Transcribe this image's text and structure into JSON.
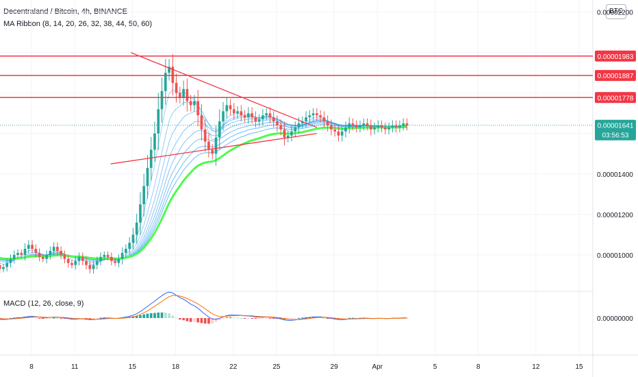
{
  "header": {
    "symbol_title": "Decentraland / Bitcoin, 4h, BINANCE",
    "ribbon_title": "MA Ribbon (8, 14, 20, 26, 32, 38, 44, 50, 60)",
    "macd_title": "MACD (12, 26, close, 9)",
    "currency": "BTC"
  },
  "colors": {
    "up": "#26a69a",
    "down": "#ef5350",
    "level": "#f23645",
    "ribbon_fast": "#2196f3",
    "ribbon_slow": "#4cfc4c",
    "macd_line": "#2962ff",
    "signal_line": "#ff6d00",
    "price_tag": "#26a69a",
    "trendline": "#f23645"
  },
  "chart_data": {
    "type": "candlestick",
    "price_axis": {
      "range": [
        8.2e-06,
        2.26e-05
      ],
      "tick_values": [
        1e-05,
        1.2e-05,
        1.4e-05,
        2.2e-05
      ],
      "tick_labels": [
        "0.00001000",
        "0.00001200",
        "0.00001400",
        "0.00002200"
      ]
    },
    "time_axis": {
      "ticks": [
        {
          "label": "8",
          "day": 8
        },
        {
          "label": "11",
          "day": 11
        },
        {
          "label": "15",
          "day": 15
        },
        {
          "label": "18",
          "day": 18
        },
        {
          "label": "22",
          "day": 22
        },
        {
          "label": "25",
          "day": 25
        },
        {
          "label": "29",
          "day": 29
        },
        {
          "label": "Apr",
          "day": 32
        },
        {
          "label": "5",
          "day": 36
        },
        {
          "label": "8",
          "day": 39
        },
        {
          "label": "12",
          "day": 43
        },
        {
          "label": "15",
          "day": 46
        }
      ]
    },
    "horizontal_levels": [
      {
        "value": 1.983e-05,
        "label": "0.00001983"
      },
      {
        "value": 1.887e-05,
        "label": "0.00001887"
      },
      {
        "value": 1.778e-05,
        "label": "0.00001778"
      }
    ],
    "last_price": {
      "value": 1.641e-05,
      "label": "0.00001641",
      "countdown": "03:56:53"
    },
    "trendlines": [
      {
        "from": {
          "day": 14.9,
          "value": 2e-05
        },
        "to": {
          "day": 27.8,
          "value": 1.63e-05
        }
      },
      {
        "from": {
          "day": 13.5,
          "value": 1.45e-05
        },
        "to": {
          "day": 27.8,
          "value": 1.6e-05
        }
      }
    ],
    "close_series": {
      "day_start": 5.3,
      "day_step": 0.25,
      "values": [
        9.9e-06,
        9.5e-06,
        9.3e-06,
        9.4e-06,
        9.6e-06,
        9.8e-06,
        1e-05,
        1.01e-05,
        1e-05,
        1.03e-05,
        1.05e-05,
        1.03e-05,
        1.01e-05,
        9.9e-06,
        9.8e-06,
        1e-05,
        1.02e-05,
        1.04e-05,
        1.02e-05,
        1e-05,
        9.8e-06,
        9.6e-06,
        9.5e-06,
        9.7e-06,
        9.9e-06,
        9.7e-06,
        9.5e-06,
        9.3e-06,
        9.5e-06,
        9.7e-06,
        9.9e-06,
        1e-05,
        9.9e-06,
        9.7e-06,
        9.6e-06,
        9.8e-06,
        1.01e-05,
        1.03e-05,
        1.06e-05,
        1.1e-05,
        1.16e-05,
        1.25e-05,
        1.34e-05,
        1.43e-05,
        1.52e-05,
        1.6e-05,
        1.72e-05,
        1.81e-05,
        1.9e-05,
        1.93e-05,
        1.85e-05,
        1.8e-05,
        1.78e-05,
        1.82e-05,
        1.76e-05,
        1.74e-05,
        1.76e-05,
        1.69e-05,
        1.62e-05,
        1.56e-05,
        1.52e-05,
        1.5e-05,
        1.58e-05,
        1.66e-05,
        1.71e-05,
        1.74e-05,
        1.72e-05,
        1.7e-05,
        1.71e-05,
        1.69e-05,
        1.68e-05,
        1.7e-05,
        1.68e-05,
        1.66e-05,
        1.67e-05,
        1.69e-05,
        1.7e-05,
        1.68e-05,
        1.66e-05,
        1.64e-05,
        1.62e-05,
        1.58e-05,
        1.59e-05,
        1.61e-05,
        1.63e-05,
        1.65e-05,
        1.66e-05,
        1.68e-05,
        1.69e-05,
        1.7e-05,
        1.69e-05,
        1.68e-05,
        1.66e-05,
        1.64e-05,
        1.62e-05,
        1.61e-05,
        1.59e-05,
        1.61e-05,
        1.63e-05,
        1.65e-05,
        1.64e-05,
        1.63e-05,
        1.64e-05,
        1.65e-05,
        1.64e-05,
        1.62e-05,
        1.63e-05,
        1.64e-05,
        1.63e-05,
        1.62e-05,
        1.63e-05,
        1.64e-05,
        1.63e-05,
        1.64e-05,
        1.65e-05,
        1.64e-05
      ]
    },
    "ribbon_periods": [
      8,
      14,
      20,
      26,
      32,
      38,
      44,
      50,
      60
    ],
    "macd": {
      "params": "12, 26, close, 9"
    }
  }
}
